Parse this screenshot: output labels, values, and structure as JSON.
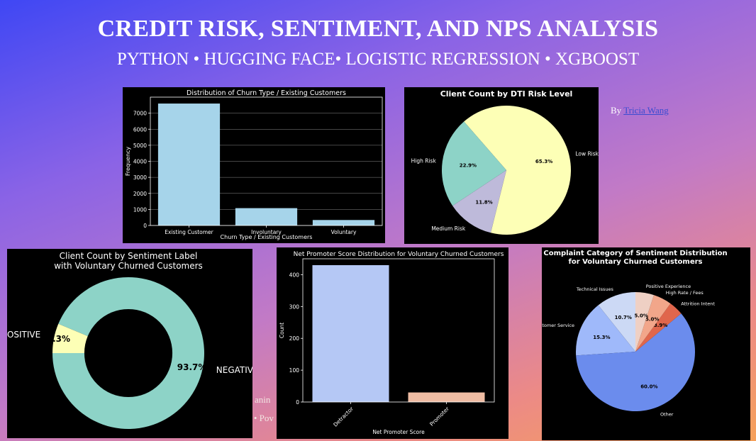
{
  "header": {
    "title": "CREDIT RISK, SENTIMENT, AND NPS ANALYSIS",
    "subtitle": "PYTHON • HUGGING FACE• LOGISTIC REGRESSION • XGBOOST",
    "by_prefix": "By",
    "author": "Tricia Wang",
    "hidden_fragment_1": "anin",
    "hidden_fragment_2": "ı • Pov"
  },
  "chart_data": [
    {
      "type": "bar",
      "title": "Distribution of Churn Type / Existing Customers",
      "xlabel": "Churn Type / Existing Customers",
      "ylabel": "Frequency",
      "categories": [
        "Existing Customer",
        "Involuntary",
        "Voluntary"
      ],
      "values": [
        7600,
        1080,
        340
      ],
      "ylim": [
        0,
        8000
      ],
      "yticks": [
        0,
        1000,
        2000,
        3000,
        4000,
        5000,
        6000,
        7000
      ],
      "grid": true,
      "colors": [
        "#a6d4ea"
      ]
    },
    {
      "type": "pie",
      "title": "Client Count by DTI Risk Level",
      "labels": [
        "Low Risk",
        "High Risk",
        "Medium Risk"
      ],
      "values": [
        65.3,
        22.9,
        11.8
      ],
      "pct_labels": [
        "65.3%",
        "22.9%",
        "11.8%"
      ],
      "colors": [
        "#fdffb6",
        "#8dd3c7",
        "#bebada"
      ]
    },
    {
      "type": "pie",
      "title": "Client Count by Sentiment Label\nwith Voluntary Churned Customers",
      "title_lines": [
        "Client Count by Sentiment Label",
        "with Voluntary Churned Customers"
      ],
      "labels": [
        "NEGATIVE",
        "POSITIVE"
      ],
      "values": [
        93.7,
        6.3
      ],
      "pct_labels": [
        "93.7%",
        "6.3%"
      ],
      "donut": true,
      "colors": [
        "#8dd3c7",
        "#fdffb6"
      ]
    },
    {
      "type": "bar",
      "title": "Net Promoter Score Distribution for Voluntary Churned Customers",
      "xlabel": "Net Promoter Score",
      "ylabel": "Count",
      "categories": [
        "Detractor",
        "Promoter"
      ],
      "values": [
        430,
        30
      ],
      "ylim": [
        0,
        450
      ],
      "yticks": [
        0,
        100,
        200,
        300,
        400
      ],
      "grid": false,
      "colors": [
        "#b5c8f5",
        "#efbca3"
      ]
    },
    {
      "type": "pie",
      "title": "Complaint Category of Sentiment Distribution\nfor Voluntary Churned Customers",
      "title_lines": [
        "Complaint Category of Sentiment Distribution",
        "for Voluntary Churned Customers"
      ],
      "labels": [
        "Technical Issues",
        "Poor Customer Service",
        "Other",
        "Attrition Intent",
        "High Rate / Fees",
        "Positive Experience"
      ],
      "values": [
        10.7,
        15.3,
        60.0,
        3.9,
        5.0,
        5.0
      ],
      "pct_labels": [
        "10.7%",
        "15.3%",
        "60.0%",
        "3.9%",
        "5.0%",
        "5.0%"
      ],
      "colors": [
        "#ccd9f5",
        "#9fb9fa",
        "#6b8ced",
        "#e0664c",
        "#f2a68a",
        "#efd0c4"
      ]
    }
  ]
}
